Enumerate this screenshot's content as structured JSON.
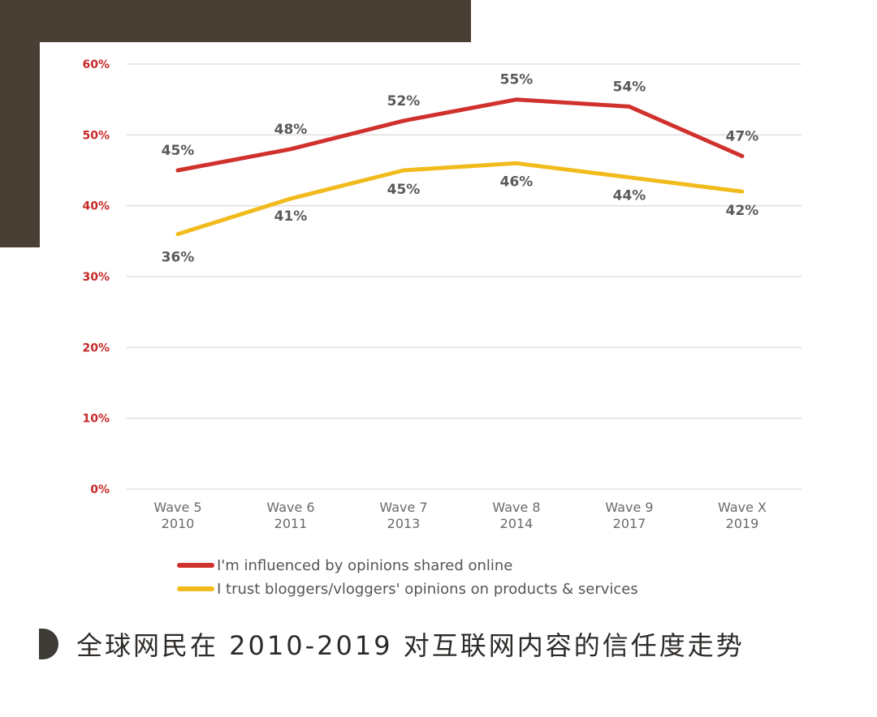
{
  "chart_data": {
    "type": "line",
    "categories": [
      {
        "wave": "Wave 5",
        "year": "2010"
      },
      {
        "wave": "Wave 6",
        "year": "2011"
      },
      {
        "wave": "Wave 7",
        "year": "2013"
      },
      {
        "wave": "Wave 8",
        "year": "2014"
      },
      {
        "wave": "Wave 9",
        "year": "2017"
      },
      {
        "wave": "Wave X",
        "year": "2019"
      }
    ],
    "y_ticks": [
      "0%",
      "10%",
      "20%",
      "30%",
      "40%",
      "50%",
      "60%"
    ],
    "ylim": [
      0,
      60
    ],
    "grid": true,
    "legend_position": "bottom-left",
    "series": [
      {
        "name": "I'm influenced by opinions shared online",
        "color": "#d0312d",
        "values": [
          45,
          48,
          52,
          55,
          54,
          47
        ],
        "labels": [
          "45%",
          "48%",
          "52%",
          "55%",
          "54%",
          "47%"
        ]
      },
      {
        "name": "I trust bloggers/vloggers' opinions on products & services",
        "color": "#f2bb1d",
        "values": [
          36,
          41,
          45,
          46,
          44,
          42
        ],
        "labels": [
          "36%",
          "41%",
          "45%",
          "46%",
          "44%",
          "42%"
        ]
      }
    ]
  },
  "caption": {
    "text": "全球网民在 2010-2019 对互联网内容的信任度走势"
  },
  "colors": {
    "frame": "#4a3f35",
    "tick_label": "#c62828",
    "data_label": "#5a5a5a",
    "grid": "#dddddd"
  }
}
